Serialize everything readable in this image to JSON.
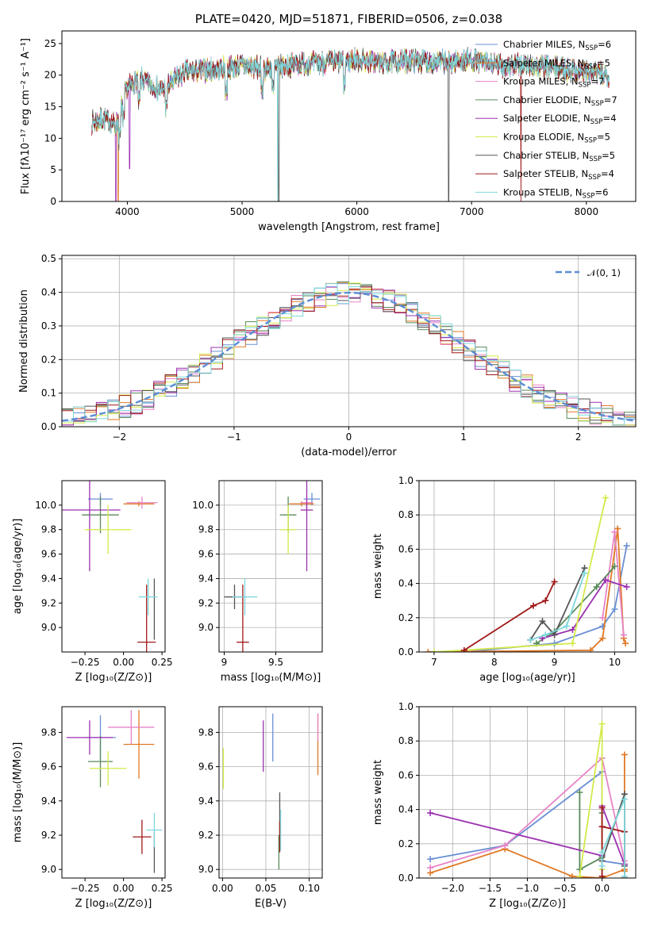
{
  "chart_data": [
    {
      "id": "spectrum",
      "type": "line",
      "title": "PLATE=0420, MJD=51871, FIBERID=0506, z=0.038",
      "xlabel": "wavelength [Angstrom, rest frame]",
      "ylabel": "Flux [fλ10⁻¹⁷ erg cm⁻² s⁻¹ A⁻¹]",
      "xlim": [
        3430,
        8430
      ],
      "ylim": [
        0,
        27
      ],
      "xticks": [
        4000,
        5000,
        6000,
        7000,
        8000
      ],
      "yticks": [
        0,
        5,
        10,
        15,
        20,
        25
      ],
      "grid": false,
      "legend_position": "top-right",
      "continuum_x": [
        3700,
        3800,
        3900,
        4000,
        4100,
        4300,
        4500,
        4800,
        5000,
        5200,
        5500,
        5800,
        6000,
        6200,
        6500,
        6800,
        7000,
        7200,
        7500,
        7800,
        8000,
        8200
      ],
      "continuum_y": [
        12.5,
        13.2,
        12.0,
        18.0,
        19.5,
        17.5,
        20.5,
        21.0,
        21.5,
        21.0,
        21.8,
        22.0,
        22.5,
        22.0,
        22.3,
        22.0,
        22.5,
        21.5,
        21.5,
        21.0,
        20.5,
        20.0
      ],
      "series": [
        {
          "name": "Chabrier MILES, N_SSP=6",
          "color": "#6a8fd4"
        },
        {
          "name": "Salpeter MILES, N_SSP=5",
          "color": "#e07a27"
        },
        {
          "name": "Kroupa MILES, N_SSP=7",
          "color": "#e884c6"
        },
        {
          "name": "Chabrier ELODIE, N_SSP=7",
          "color": "#5a8a5a"
        },
        {
          "name": "Salpeter ELODIE, N_SSP=4",
          "color": "#9b30b0"
        },
        {
          "name": "Kroupa ELODIE, N_SSP=5",
          "color": "#d4ea4a"
        },
        {
          "name": "Chabrier STELIB, N_SSP=5",
          "color": "#555555"
        },
        {
          "name": "Salpeter STELIB, N_SSP=4",
          "color": "#a01818"
        },
        {
          "name": "Kroupa STELIB, N_SSP=6",
          "color": "#7ed7dc"
        }
      ],
      "legend_entries": [
        {
          "pre": "Chabrier MILES, N",
          "sub": "SSP",
          "post": "=6"
        },
        {
          "pre": "Salpeter MILES, N",
          "sub": "SSP",
          "post": "=5"
        },
        {
          "pre": "Kroupa MILES, N",
          "sub": "SSP",
          "post": "=7"
        },
        {
          "pre": "Chabrier ELODIE, N",
          "sub": "SSP",
          "post": "=7"
        },
        {
          "pre": "Salpeter ELODIE, N",
          "sub": "SSP",
          "post": "=4"
        },
        {
          "pre": "Kroupa ELODIE, N",
          "sub": "SSP",
          "post": "=5"
        },
        {
          "pre": "Chabrier STELIB, N",
          "sub": "SSP",
          "post": "=5"
        },
        {
          "pre": "Salpeter STELIB, N",
          "sub": "SSP",
          "post": "=4"
        },
        {
          "pre": "Kroupa STELIB, N",
          "sub": "SSP",
          "post": "=6"
        }
      ]
    },
    {
      "id": "residuals",
      "type": "line",
      "xlabel": "(data-model)/error",
      "ylabel": "Normed distribution",
      "xlim": [
        -2.5,
        2.5
      ],
      "ylim": [
        0,
        0.51
      ],
      "xticks": [
        -2,
        -1,
        0,
        1,
        2
      ],
      "xtick_labels": [
        "−2",
        "−1",
        "0",
        "1",
        "2"
      ],
      "yticks": [
        0.0,
        0.1,
        0.2,
        0.3,
        0.4,
        0.5
      ],
      "grid": true,
      "gaussian_label": "𝒩(0, 1)",
      "gaussian_color": "#5b8dd6",
      "bin_width": 0.1
    },
    {
      "id": "age_vs_Z",
      "type": "scatter",
      "xlabel": "Z [log₁₀(Z/Z⊙)]",
      "ylabel": "age  [log₁₀(age/yr)]",
      "xlim": [
        -0.4,
        0.27
      ],
      "ylim": [
        8.8,
        10.2
      ],
      "xticks": [
        -0.25,
        0.0,
        0.25
      ],
      "xtick_labels": [
        "−0.25",
        "0.00",
        "0.25"
      ],
      "yticks": [
        9.0,
        9.2,
        9.4,
        9.6,
        9.8,
        10.0
      ],
      "grid": false,
      "points": [
        {
          "c": "#6a8fd4",
          "x": -0.15,
          "xe": 0.08,
          "y": 10.05,
          "ye": 0.05
        },
        {
          "c": "#e07a27",
          "x": 0.1,
          "xe": 0.1,
          "y": 10.01,
          "ye": 0.02
        },
        {
          "c": "#e884c6",
          "x": 0.12,
          "xe": 0.1,
          "y": 10.02,
          "ye": 0.05
        },
        {
          "c": "#5a8a5a",
          "x": -0.15,
          "xe": 0.12,
          "y": 9.92,
          "ye": 0.15
        },
        {
          "c": "#9b30b0",
          "x": -0.22,
          "xe": 0.2,
          "y": 9.96,
          "ye": 0.5
        },
        {
          "c": "#d4ea4a",
          "x": -0.1,
          "xe": 0.15,
          "y": 9.8,
          "ye": 0.2
        },
        {
          "c": "#555555",
          "x": 0.2,
          "xe": 0.0,
          "y": 9.15,
          "ye": 0.25
        },
        {
          "c": "#a01818",
          "x": 0.15,
          "xe": 0.06,
          "y": 8.88,
          "ye": 0.47
        },
        {
          "c": "#7ed7dc",
          "x": 0.16,
          "xe": 0.06,
          "y": 9.25,
          "ye": 0.15
        }
      ]
    },
    {
      "id": "age_vs_mass",
      "type": "scatter",
      "xlabel": "mass [log₁₀(M/M⊙)]",
      "xlim": [
        8.95,
        9.95
      ],
      "ylim": [
        8.8,
        10.2
      ],
      "xticks": [
        9.0,
        9.5
      ],
      "yticks": [
        9.0,
        9.2,
        9.4,
        9.6,
        9.8,
        10.0
      ],
      "grid": true,
      "points": [
        {
          "c": "#6a8fd4",
          "x": 9.85,
          "xe": 0.08,
          "y": 10.05,
          "ye": 0.05
        },
        {
          "c": "#e07a27",
          "x": 9.75,
          "xe": 0.12,
          "y": 10.01,
          "ye": 0.02
        },
        {
          "c": "#e884c6",
          "x": 9.8,
          "xe": 0.06,
          "y": 10.02,
          "ye": 0.05
        },
        {
          "c": "#5a8a5a",
          "x": 9.62,
          "xe": 0.08,
          "y": 9.92,
          "ye": 0.15
        },
        {
          "c": "#9b30b0",
          "x": 9.8,
          "xe": 0.06,
          "y": 9.96,
          "ye": 0.5
        },
        {
          "c": "#d4ea4a",
          "x": 9.62,
          "xe": 0.08,
          "y": 9.8,
          "ye": 0.2
        },
        {
          "c": "#555555",
          "x": 9.1,
          "xe": 0.1,
          "y": 9.25,
          "ye": 0.1
        },
        {
          "c": "#a01818",
          "x": 9.18,
          "xe": 0.06,
          "y": 8.88,
          "ye": 0.47
        },
        {
          "c": "#7ed7dc",
          "x": 9.2,
          "xe": 0.12,
          "y": 9.25,
          "ye": 0.15
        }
      ]
    },
    {
      "id": "weight_vs_age",
      "type": "line",
      "xlabel": "age  [log₁₀(age/yr)]",
      "ylabel": "mass weight",
      "xlim": [
        6.75,
        10.35
      ],
      "ylim": [
        0,
        1
      ],
      "xticks": [
        7,
        8,
        9,
        10
      ],
      "yticks": [
        0.0,
        0.2,
        0.4,
        0.6,
        0.8,
        1.0
      ],
      "grid": true,
      "series": [
        {
          "c": "#6a8fd4",
          "x": [
            7.5,
            9.0,
            9.8,
            10.0,
            10.2
          ],
          "y": [
            0.0,
            0.05,
            0.15,
            0.25,
            0.62
          ]
        },
        {
          "c": "#e07a27",
          "x": [
            6.9,
            9.6,
            9.8,
            10.05,
            10.15,
            10.18
          ],
          "y": [
            0.0,
            0.01,
            0.08,
            0.72,
            0.08,
            0.05
          ]
        },
        {
          "c": "#e884c6",
          "x": [
            9.8,
            10.0,
            10.15
          ],
          "y": [
            0.2,
            0.7,
            0.1
          ]
        },
        {
          "c": "#5a8a5a",
          "x": [
            8.7,
            9.0,
            9.7,
            10.0
          ],
          "y": [
            0.05,
            0.12,
            0.38,
            0.5
          ]
        },
        {
          "c": "#9b30b0",
          "x": [
            8.8,
            9.3,
            9.85,
            10.2
          ],
          "y": [
            0.08,
            0.13,
            0.42,
            0.38
          ]
        },
        {
          "c": "#d4ea4a",
          "x": [
            7.0,
            9.3,
            9.85
          ],
          "y": [
            0.0,
            0.05,
            0.9
          ]
        },
        {
          "c": "#555555",
          "x": [
            8.6,
            8.8,
            9.0,
            9.5
          ],
          "y": [
            0.07,
            0.18,
            0.1,
            0.49
          ]
        },
        {
          "c": "#a01818",
          "x": [
            7.5,
            8.65,
            8.85,
            9.0
          ],
          "y": [
            0.01,
            0.27,
            0.3,
            0.41
          ]
        },
        {
          "c": "#7ed7dc",
          "x": [
            8.6,
            8.85,
            9.2,
            9.5
          ],
          "y": [
            0.07,
            0.1,
            0.15,
            0.46
          ]
        }
      ]
    },
    {
      "id": "mass_vs_Z",
      "type": "scatter",
      "xlabel": "Z [log₁₀(Z/Z⊙)]",
      "ylabel": "mass [log₁₀(M/M⊙)]",
      "xlim": [
        -0.4,
        0.27
      ],
      "ylim": [
        8.95,
        9.95
      ],
      "xticks": [
        -0.25,
        0.0,
        0.25
      ],
      "xtick_labels": [
        "−0.25",
        "0.00",
        "0.25"
      ],
      "yticks": [
        9.0,
        9.2,
        9.4,
        9.6,
        9.8
      ],
      "grid": false,
      "points": [
        {
          "c": "#6a8fd4",
          "x": -0.15,
          "xe": 0.1,
          "y": 9.77,
          "ye": 0.13
        },
        {
          "c": "#e07a27",
          "x": 0.1,
          "xe": 0.1,
          "y": 9.73,
          "ye": 0.2
        },
        {
          "c": "#e884c6",
          "x": 0.05,
          "xe": 0.15,
          "y": 9.83,
          "ye": 0.1
        },
        {
          "c": "#5a8a5a",
          "x": -0.15,
          "xe": 0.08,
          "y": 9.63,
          "ye": 0.15
        },
        {
          "c": "#9b30b0",
          "x": -0.22,
          "xe": 0.15,
          "y": 9.77,
          "ye": 0.1
        },
        {
          "c": "#d4ea4a",
          "x": -0.1,
          "xe": 0.12,
          "y": 9.59,
          "ye": 0.1
        },
        {
          "c": "#555555",
          "x": 0.2,
          "xe": 0.0,
          "y": 9.1,
          "ye": 0.12
        },
        {
          "c": "#a01818",
          "x": 0.12,
          "xe": 0.06,
          "y": 9.19,
          "ye": 0.1
        },
        {
          "c": "#7ed7dc",
          "x": 0.2,
          "xe": 0.05,
          "y": 9.23,
          "ye": 0.1
        }
      ]
    },
    {
      "id": "mass_vs_ebv",
      "type": "scatter",
      "xlabel": "E(B-V)",
      "xlim": [
        -0.004,
        0.115
      ],
      "ylim": [
        8.95,
        9.95
      ],
      "xticks": [
        0.0,
        0.05,
        0.1
      ],
      "xtick_labels": [
        "0.00",
        "0.05",
        "0.10"
      ],
      "yticks": [
        9.0,
        9.2,
        9.4,
        9.6,
        9.8
      ],
      "grid": true,
      "points": [
        {
          "c": "#6a8fd4",
          "x": 0.058,
          "xe": 0,
          "y": 9.77,
          "ye": 0.14
        },
        {
          "c": "#e07a27",
          "x": 0.11,
          "xe": 0,
          "y": 9.73,
          "ye": 0.18
        },
        {
          "c": "#e884c6",
          "x": 0.11,
          "xe": 0,
          "y": 9.83,
          "ye": 0.08
        },
        {
          "c": "#5a8a5a",
          "x": 0.065,
          "xe": 0,
          "y": 9.1,
          "ye": 0.1
        },
        {
          "c": "#9b30b0",
          "x": 0.047,
          "xe": 0,
          "y": 9.72,
          "ye": 0.15
        },
        {
          "c": "#d4ea4a",
          "x": 0.001,
          "xe": 0,
          "y": 9.59,
          "ye": 0.12
        },
        {
          "c": "#555555",
          "x": 0.066,
          "xe": 0,
          "y": 9.3,
          "ye": 0.15
        },
        {
          "c": "#a01818",
          "x": 0.066,
          "xe": 0,
          "y": 9.19,
          "ye": 0.09
        },
        {
          "c": "#7ed7dc",
          "x": 0.067,
          "xe": 0,
          "y": 9.23,
          "ye": 0.12
        }
      ]
    },
    {
      "id": "weight_vs_Z",
      "type": "line",
      "xlabel": "Z [log₁₀(Z/Z⊙)]",
      "ylabel": "mass weight",
      "xlim": [
        -2.45,
        0.45
      ],
      "ylim": [
        0,
        1
      ],
      "xticks": [
        -2.0,
        -1.5,
        -1.0,
        -0.5,
        0.0
      ],
      "xtick_labels": [
        "−2.0",
        "−1.5",
        "−1.0",
        "−0.5",
        "0.0"
      ],
      "yticks": [
        0.0,
        0.2,
        0.4,
        0.6,
        0.8,
        1.0
      ],
      "grid": true,
      "series": [
        {
          "c": "#6a8fd4",
          "x": [
            -2.3,
            -1.3,
            0.0,
            0.0,
            0.3
          ],
          "y": [
            0.11,
            0.19,
            0.62,
            0.1,
            0.08
          ]
        },
        {
          "c": "#e07a27",
          "x": [
            -2.3,
            -1.3,
            -0.4,
            0.0,
            0.3,
            0.3,
            0.3
          ],
          "y": [
            0.03,
            0.17,
            0.01,
            0.0,
            0.05,
            0.72,
            0.04
          ]
        },
        {
          "c": "#e884c6",
          "x": [
            -2.3,
            -1.3,
            0.0,
            0.3
          ],
          "y": [
            0.06,
            0.19,
            0.7,
            0.1
          ]
        },
        {
          "c": "#5a8a5a",
          "x": [
            -0.3,
            -0.3,
            0.0,
            0.0
          ],
          "y": [
            0.5,
            0.05,
            0.12,
            0.38
          ]
        },
        {
          "c": "#9b30b0",
          "x": [
            -2.3,
            0.0,
            0.0,
            0.3
          ],
          "y": [
            0.38,
            0.13,
            0.42,
            0.08
          ]
        },
        {
          "c": "#d4ea4a",
          "x": [
            -0.3,
            0.0,
            0.0
          ],
          "y": [
            0.01,
            0.9,
            0.05
          ]
        },
        {
          "c": "#555555",
          "x": [
            0.0,
            0.3,
            0.3
          ],
          "y": [
            0.1,
            0.49,
            0.07
          ]
        },
        {
          "c": "#a01818",
          "x": [
            0.0,
            0.0,
            0.0,
            0.3,
            0.3
          ],
          "y": [
            0.01,
            0.41,
            0.3,
            0.27,
            0.0
          ]
        },
        {
          "c": "#7ed7dc",
          "x": [
            0.0,
            0.0,
            0.3,
            0.3
          ],
          "y": [
            0.07,
            0.15,
            0.46,
            0.01
          ]
        }
      ]
    }
  ]
}
